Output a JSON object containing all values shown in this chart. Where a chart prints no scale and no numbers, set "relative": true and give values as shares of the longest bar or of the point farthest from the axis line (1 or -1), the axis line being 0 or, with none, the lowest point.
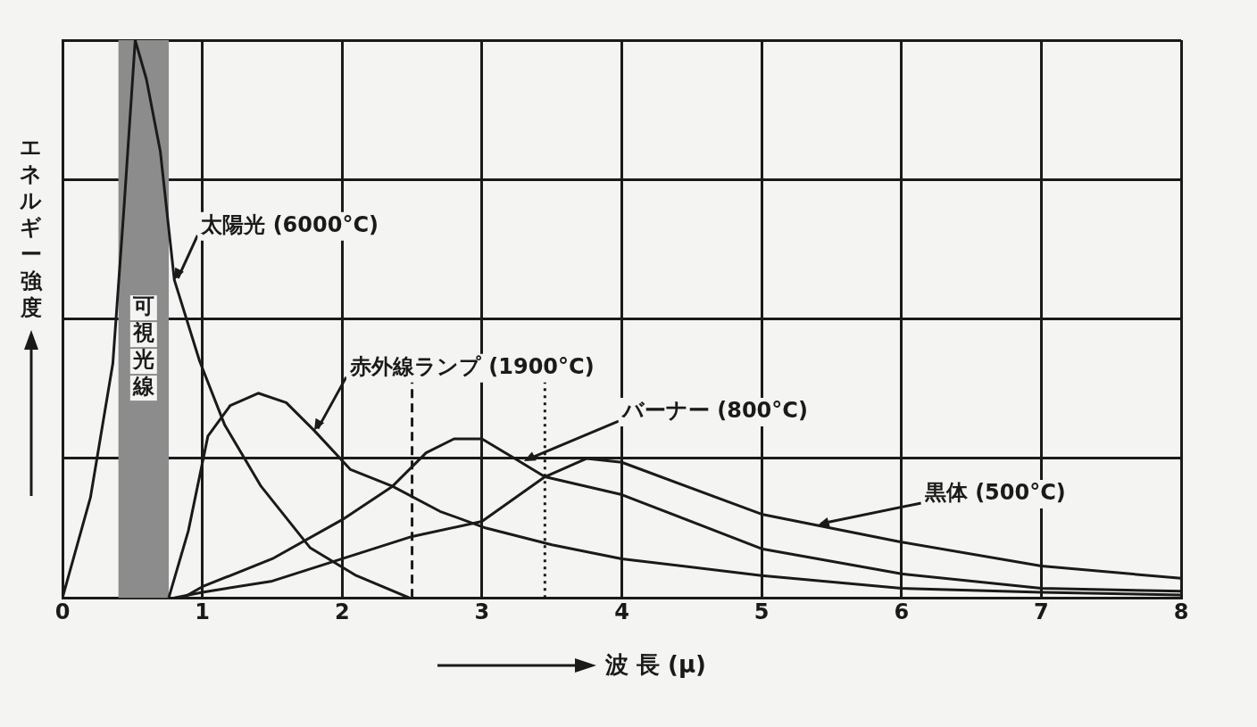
{
  "chart_data": {
    "type": "line",
    "relative": true,
    "xlabel": "波 長 (μ)",
    "ylabel": "エネルギー強度",
    "xlim": [
      0,
      8
    ],
    "xticks": [
      0,
      1,
      2,
      3,
      4,
      5,
      6,
      7,
      8
    ],
    "grid": true,
    "legend": false,
    "marker": "none",
    "line_style": "solid",
    "series": [
      {
        "color": "#1a1a1a",
        "x": [
          0,
          0.2,
          0.36,
          0.44,
          0.52,
          0.6,
          0.7,
          0.8,
          0.98,
          1.16,
          1.42,
          1.77,
          2.1,
          2.48
        ],
        "values": [
          0,
          0.18,
          0.42,
          0.7,
          1.0,
          0.93,
          0.8,
          0.57,
          0.425,
          0.31,
          0.2,
          0.09,
          0.04,
          0
        ]
      },
      {
        "color": "#1a1a1a",
        "x": [
          0.76,
          0.9,
          1.04,
          1.2,
          1.4,
          1.6,
          1.8,
          2.06,
          2.36,
          2.7,
          3.03,
          3.5,
          4,
          5,
          6,
          7,
          8
        ],
        "values": [
          0,
          0.12,
          0.29,
          0.345,
          0.367,
          0.35,
          0.3,
          0.23,
          0.2,
          0.155,
          0.125,
          0.095,
          0.07,
          0.04,
          0.017,
          0.01,
          0.005
        ]
      },
      {
        "color": "#1a1a1a",
        "x": [
          0.86,
          1,
          1.5,
          2,
          2.36,
          2.6,
          2.8,
          3,
          3.2,
          3.45,
          4,
          5,
          6,
          7,
          8
        ],
        "values": [
          0,
          0.02,
          0.07,
          0.14,
          0.2,
          0.26,
          0.285,
          0.285,
          0.255,
          0.217,
          0.185,
          0.088,
          0.043,
          0.017,
          0.012
        ]
      },
      {
        "color": "#1a1a1a",
        "x": [
          0.8,
          1,
          1.5,
          2,
          2.5,
          3,
          3.45,
          3.75,
          4,
          5,
          6,
          7,
          8
        ],
        "values": [
          0,
          0.01,
          0.03,
          0.07,
          0.11,
          0.137,
          0.217,
          0.25,
          0.243,
          0.15,
          0.1,
          0.057,
          0.035
        ]
      }
    ],
    "bands": [
      {
        "axis": "x",
        "from": 0.4,
        "to": 0.76,
        "label": "可視光線",
        "color": "#8c8c8c"
      }
    ],
    "ref_lines": [
      {
        "axis": "x",
        "value": 2.5,
        "line_style": "dashed"
      },
      {
        "axis": "x",
        "value": 3.45,
        "line_style": "dotted"
      }
    ],
    "annotations": [
      {
        "text": "太陽光 (6000°C)",
        "x": 0.8,
        "y": 0.57
      },
      {
        "text": "赤外線ランプ (1900°C)",
        "x": 1.8,
        "y": 0.3
      },
      {
        "text": "バーナー (800°C)",
        "x": 3.3,
        "y": 0.245
      },
      {
        "text": "黒体 (500°C)",
        "x": 5.4,
        "y": 0.13
      }
    ]
  }
}
